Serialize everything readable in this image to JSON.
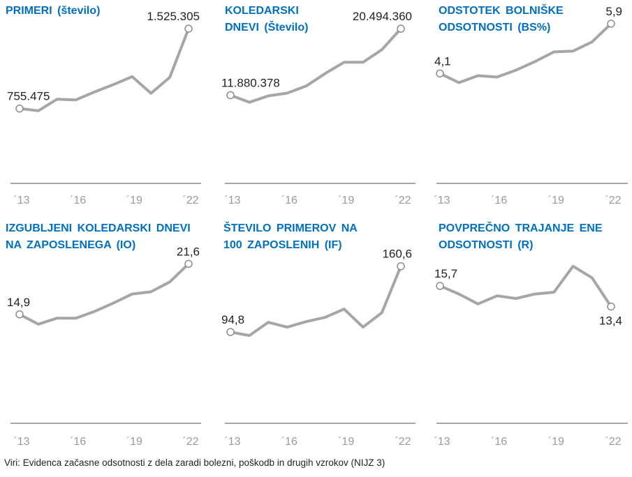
{
  "footer": "Viri: Evidenca začasne odsotnosti z dela zaradi bolezni, poškodb in drugih vzrokov (NIJZ 3)",
  "colors": {
    "title": "#0070C0",
    "line": "#A6A6A6",
    "marker": "#8C8C8C",
    "axis": "#A6A6A6"
  },
  "chart_data": [
    {
      "type": "line",
      "title_lines": [
        "PRIMERI  (število)"
      ],
      "x": [
        2013,
        2014,
        2015,
        2016,
        2017,
        2018,
        2019,
        2020,
        2021,
        2022
      ],
      "values": [
        755475,
        734000,
        846000,
        839000,
        916000,
        986000,
        1063000,
        902000,
        1056000,
        1525305
      ],
      "labels": {
        "first": "755.475",
        "last": "1.525.305"
      },
      "last_label_position": "above",
      "ylim": [
        0,
        1600000
      ],
      "xticks": [
        "´13",
        "´16",
        "´19",
        "´22"
      ]
    },
    {
      "type": "line",
      "title_lines": [
        "KOLEDARSKI",
        "DNEVI (Število)"
      ],
      "x": [
        2013,
        2014,
        2015,
        2016,
        2017,
        2018,
        2019,
        2020,
        2021,
        2022
      ],
      "values": [
        11880378,
        10970000,
        11790000,
        12150000,
        13060000,
        14690000,
        16140000,
        16140000,
        17780000,
        20494360
      ],
      "labels": {
        "first": "11.880.378",
        "last": "20.494.360"
      },
      "last_label_position": "above",
      "ylim": [
        0,
        21500000
      ],
      "xticks": [
        "´13",
        "´16",
        "´19",
        "´22"
      ]
    },
    {
      "type": "line",
      "title_lines": [
        "ODSTOTEK  BOLNIŠKE",
        "ODSOTNOSTI  (BS%)"
      ],
      "x": [
        2013,
        2014,
        2015,
        2016,
        2017,
        2018,
        2019,
        2020,
        2021,
        2022
      ],
      "values": [
        4.1,
        3.77,
        4.02,
        3.97,
        4.22,
        4.53,
        4.88,
        4.91,
        5.24,
        5.9
      ],
      "labels": {
        "first": "4,1",
        "last": "5,9"
      },
      "last_label_position": "above",
      "ylim": [
        0,
        6
      ],
      "xticks": [
        "´13",
        "´16",
        "´19",
        "´22"
      ]
    },
    {
      "type": "line",
      "title_lines": [
        "IZGUBLJENI  KOLEDARSKI DNEVI",
        "NA ZAPOSLENEGA  (IO)"
      ],
      "x": [
        2013,
        2014,
        2015,
        2016,
        2017,
        2018,
        2019,
        2020,
        2021,
        2022
      ],
      "values": [
        14.9,
        13.6,
        14.4,
        14.4,
        15.3,
        16.4,
        17.6,
        17.9,
        19.2,
        21.6
      ],
      "labels": {
        "first": "14,9",
        "last": "21,6"
      },
      "last_label_position": "above",
      "ylim": [
        0,
        22
      ],
      "xticks": [
        "´13",
        "´16",
        "´19",
        "´22"
      ]
    },
    {
      "type": "line",
      "title_lines": [
        "ŠTEVILO  PRIMEROV  NA",
        "100 ZAPOSLENIH  (IF)"
      ],
      "x": [
        2013,
        2014,
        2015,
        2016,
        2017,
        2018,
        2019,
        2020,
        2021,
        2022
      ],
      "values": [
        94.8,
        91.3,
        104.5,
        99.7,
        105.2,
        109.4,
        117.7,
        99.7,
        114.2,
        160.6
      ],
      "labels": {
        "first": "94,8",
        "last": "160,6"
      },
      "last_label_position": "above",
      "ylim": [
        0,
        166
      ],
      "xticks": [
        "´13",
        "´16",
        "´19",
        "´22"
      ]
    },
    {
      "type": "line",
      "title_lines": [
        "POVPREČNO  TRAJANJE  ENE",
        "ODSOTNOSTI  (R)"
      ],
      "x": [
        2013,
        2014,
        2015,
        2016,
        2017,
        2018,
        2019,
        2020,
        2021,
        2022
      ],
      "values": [
        15.7,
        14.8,
        13.7,
        14.6,
        14.3,
        14.8,
        15.0,
        17.9,
        16.6,
        13.4
      ],
      "labels": {
        "first": "15,7",
        "last": "13,4"
      },
      "last_label_position": "below",
      "ylim": [
        0,
        18.5
      ],
      "xticks": [
        "´13",
        "´16",
        "´19",
        "´22"
      ]
    }
  ]
}
